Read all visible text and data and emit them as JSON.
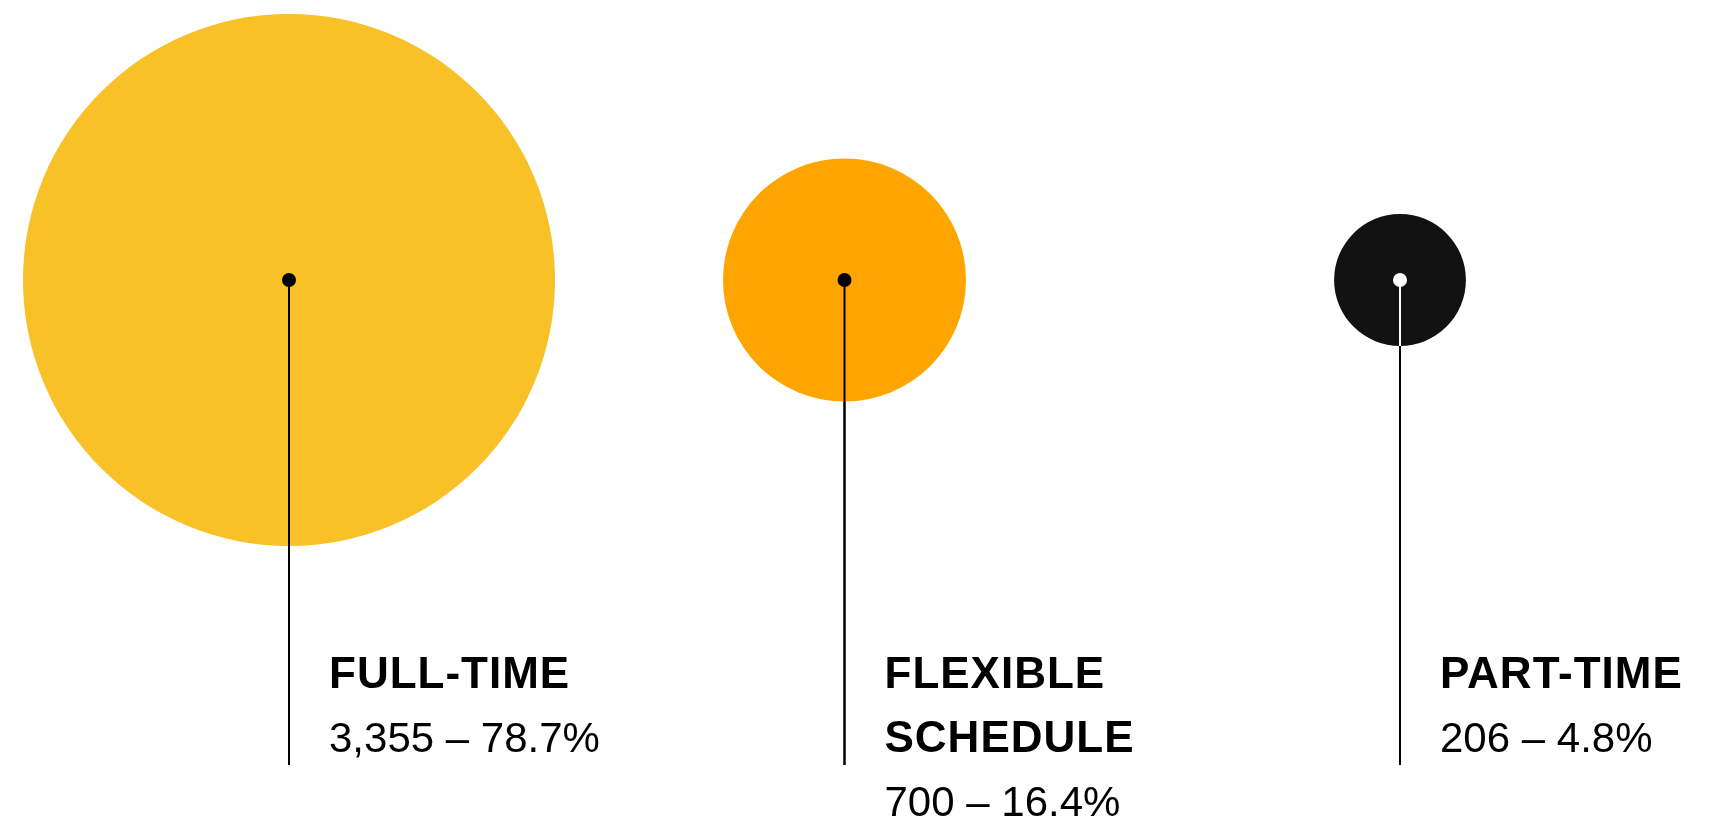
{
  "chart_data": {
    "type": "other",
    "categories": [
      "FULL-TIME",
      "FLEXIBLE SCHEDULE",
      "PART-TIME"
    ],
    "values": [
      3355,
      700,
      206
    ],
    "value_labels": [
      "3,355 – 78.7%",
      "700 – 16.4%",
      "206 – 4.8%"
    ],
    "colors": [
      "#f8c127",
      "#ffa500",
      "#111111"
    ]
  }
}
